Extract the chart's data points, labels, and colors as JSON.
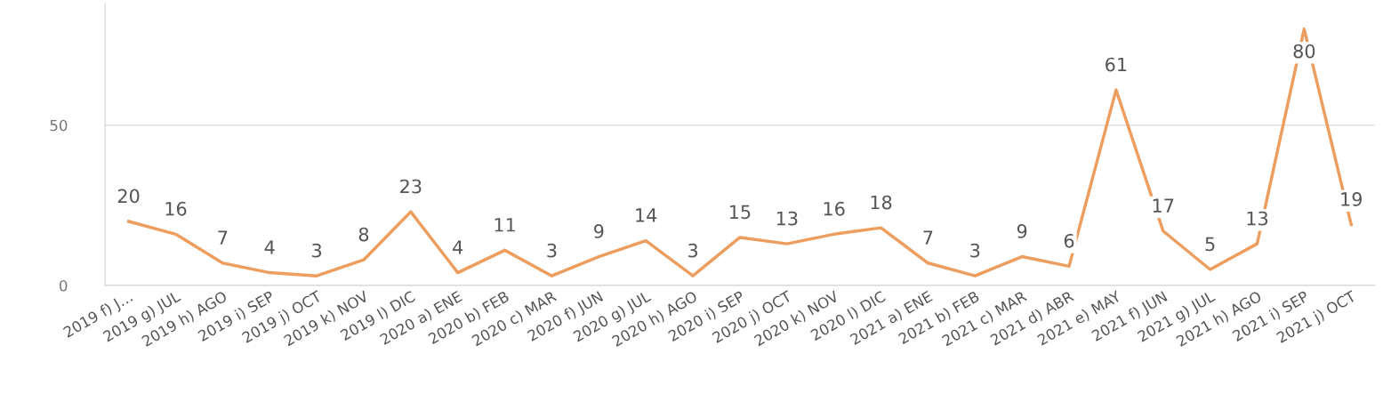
{
  "chart_data": {
    "type": "line",
    "categories": [
      "2019 f) J…",
      "2019 g) JUL",
      "2019 h) AGO",
      "2019 i) SEP",
      "2019 j) OCT",
      "2019 k) NOV",
      "2019 l) DIC",
      "2020 a) ENE",
      "2020 b) FEB",
      "2020 c) MAR",
      "2020 f) JUN",
      "2020 g) JUL",
      "2020 h) AGO",
      "2020 i) SEP",
      "2020 j) OCT",
      "2020 k) NOV",
      "2020 l) DIC",
      "2021 a) ENE",
      "2021 b) FEB",
      "2021 c) MAR",
      "2021 d) ABR",
      "2021 e) MAY",
      "2021 f) JUN",
      "2021 g) JUL",
      "2021 h) AGO",
      "2021 i) SEP",
      "2021 j) OCT"
    ],
    "series": [
      {
        "color": "#ed9e5f",
        "values": [
          20,
          16,
          7,
          4,
          3,
          8,
          23,
          4,
          11,
          3,
          9,
          14,
          3,
          15,
          13,
          16,
          18,
          7,
          3,
          9,
          6,
          61,
          17,
          5,
          13,
          80,
          19
        ]
      }
    ],
    "ylim": [
      0,
      88
    ],
    "yticks": [
      0,
      50
    ],
    "grid": "y",
    "data_labels": true,
    "marker": "none",
    "line_style": "solid"
  }
}
